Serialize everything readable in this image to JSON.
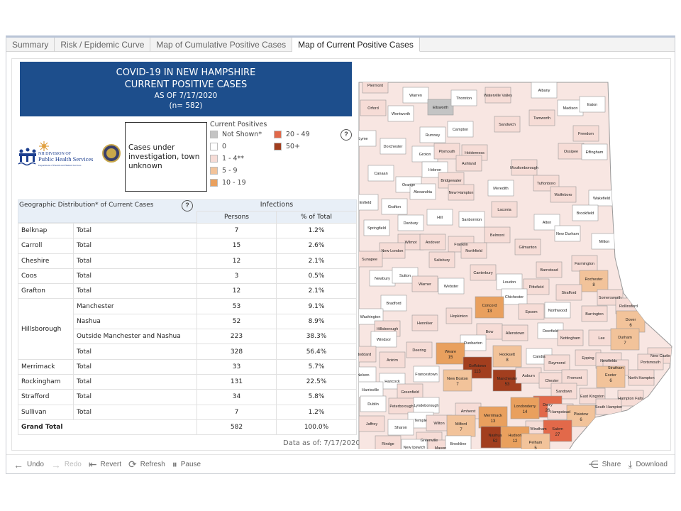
{
  "tabs": [
    {
      "label": "Summary"
    },
    {
      "label": "Risk / Epidemic Curve"
    },
    {
      "label": "Map of Cumulative Positive Cases"
    },
    {
      "label": "Map of Current Positive Cases",
      "active": true
    }
  ],
  "header": {
    "line1": "COVID-19 IN NEW HAMPSHIRE",
    "line2": "CURRENT POSITIVE CASES",
    "line3": "AS OF 7/17/2020",
    "line4": "(n= 582)"
  },
  "logo": {
    "text1": "NH DIVISION OF",
    "text2": "Public Health Services",
    "text3": "Department of Health and Human Services"
  },
  "unknown_box": "Cases under investigation, town unknown",
  "legend": {
    "title": "Current Positives",
    "items": [
      {
        "label": "Not Shown*",
        "color": "#c4c4c4"
      },
      {
        "label": "0",
        "color": "#ffffff"
      },
      {
        "label": "1 - 4**",
        "color": "#f6dcd6"
      },
      {
        "label": "5 - 9",
        "color": "#f2c39a"
      },
      {
        "label": "10 - 19",
        "color": "#e9a05e"
      },
      {
        "label": "20 - 49",
        "color": "#e2694a"
      },
      {
        "label": "50+",
        "color": "#a23e1e"
      }
    ]
  },
  "help_icon": "question-icon",
  "table": {
    "title": "Geographic Distribution* of Current Cases",
    "group_header": "Infections",
    "col_persons": "Persons",
    "col_pct": "% of Total",
    "rows": [
      {
        "county": "Belknap",
        "sub": "Total",
        "persons": "7",
        "pct": "1.2%"
      },
      {
        "county": "Carroll",
        "sub": "Total",
        "persons": "15",
        "pct": "2.6%"
      },
      {
        "county": "Cheshire",
        "sub": "Total",
        "persons": "12",
        "pct": "2.1%"
      },
      {
        "county": "Coos",
        "sub": "Total",
        "persons": "3",
        "pct": "0.5%"
      },
      {
        "county": "Grafton",
        "sub": "Total",
        "persons": "12",
        "pct": "2.1%"
      },
      {
        "county": "Hillsborough",
        "sub": "Manchester",
        "persons": "53",
        "pct": "9.1%"
      },
      {
        "county": "Hillsborough",
        "sub": "Nashua",
        "persons": "52",
        "pct": "8.9%"
      },
      {
        "county": "Hillsborough",
        "sub": "Outside Manchester and Nashua",
        "persons": "223",
        "pct": "38.3%"
      },
      {
        "county": "Hillsborough",
        "sub": "Total",
        "persons": "328",
        "pct": "56.4%"
      },
      {
        "county": "Merrimack",
        "sub": "Total",
        "persons": "33",
        "pct": "5.7%"
      },
      {
        "county": "Rockingham",
        "sub": "Total",
        "persons": "131",
        "pct": "22.5%"
      },
      {
        "county": "Strafford",
        "sub": "Total",
        "persons": "34",
        "pct": "5.8%"
      },
      {
        "county": "Sullivan",
        "sub": "Total",
        "persons": "7",
        "pct": "1.2%"
      }
    ],
    "grand_total": {
      "label": "Grand Total",
      "persons": "582",
      "pct": "100.0%"
    }
  },
  "data_as_of": "Data as of:  7/17/2020",
  "toolbar": {
    "undo": "Undo",
    "redo": "Redo",
    "revert": "Revert",
    "refresh": "Refresh",
    "pause": "Pause",
    "share": "Share",
    "download": "Download"
  },
  "map": {
    "towns": [
      {
        "name": "Piermont",
        "bin": 2
      },
      {
        "name": "Warren",
        "bin": 1
      },
      {
        "name": "Ellsworth",
        "bin": 0
      },
      {
        "name": "Thornton",
        "bin": 1
      },
      {
        "name": "Waterville Valley",
        "bin": 2
      },
      {
        "name": "Albany",
        "bin": 1
      },
      {
        "name": "Madison",
        "bin": 1
      },
      {
        "name": "Eaton",
        "bin": 1
      },
      {
        "name": "Orford",
        "bin": 2
      },
      {
        "name": "Wentworth",
        "bin": 1
      },
      {
        "name": "Sandwich",
        "bin": 2
      },
      {
        "name": "Tamworth",
        "bin": 2
      },
      {
        "name": "Campton",
        "bin": 1
      },
      {
        "name": "Rumney",
        "bin": 1
      },
      {
        "name": "Freedom",
        "bin": 2
      },
      {
        "name": "Lyme",
        "bin": 1
      },
      {
        "name": "Dorchester",
        "bin": 1
      },
      {
        "name": "Groton",
        "bin": 1
      },
      {
        "name": "Plymouth",
        "bin": 2
      },
      {
        "name": "Holderness",
        "bin": 2
      },
      {
        "name": "Ossipee",
        "bin": 2
      },
      {
        "name": "Effingham",
        "bin": 1
      },
      {
        "name": "Ashland",
        "bin": 2
      },
      {
        "name": "Hebron",
        "bin": 1
      },
      {
        "name": "Moultonborough",
        "bin": 2
      },
      {
        "name": "Canaan",
        "bin": 1
      },
      {
        "name": "Bridgewater",
        "bin": 2
      },
      {
        "name": "Tuftonboro",
        "bin": 2
      },
      {
        "name": "Orange",
        "bin": 1
      },
      {
        "name": "Alexandria",
        "bin": 1
      },
      {
        "name": "New Hampton",
        "bin": 2
      },
      {
        "name": "Meredith",
        "bin": 1
      },
      {
        "name": "Wolfeboro",
        "bin": 2
      },
      {
        "name": "Wakefield",
        "bin": 1
      },
      {
        "name": "Enfield",
        "bin": 1
      },
      {
        "name": "Grafton",
        "bin": 1
      },
      {
        "name": "Laconia",
        "bin": 2
      },
      {
        "name": "Brookfield",
        "bin": 1
      },
      {
        "name": "Danbury",
        "bin": 1
      },
      {
        "name": "Hill",
        "bin": 1
      },
      {
        "name": "Sanbornton",
        "bin": 1
      },
      {
        "name": "Alton",
        "bin": 1
      },
      {
        "name": "Springfield",
        "bin": 1
      },
      {
        "name": "Belmont",
        "bin": 2
      },
      {
        "name": "New Durham",
        "bin": 1
      },
      {
        "name": "Wilmot",
        "bin": 2
      },
      {
        "name": "Andover",
        "bin": 2
      },
      {
        "name": "Franklin",
        "bin": 2
      },
      {
        "name": "Northfield",
        "bin": 2
      },
      {
        "name": "Gilmanton",
        "bin": 2
      },
      {
        "name": "Milton",
        "bin": 1
      },
      {
        "name": "New London",
        "bin": 2
      },
      {
        "name": "Salisbury",
        "bin": 2
      },
      {
        "name": "Farmington",
        "bin": 2
      },
      {
        "name": "Sunapee",
        "bin": 2
      },
      {
        "name": "Canterbury",
        "bin": 2
      },
      {
        "name": "Barnstead",
        "bin": 2
      },
      {
        "name": "Rochester",
        "value": "8",
        "bin": 3
      },
      {
        "name": "Newbury",
        "bin": 1
      },
      {
        "name": "Sutton",
        "bin": 1
      },
      {
        "name": "Loudon",
        "bin": 1
      },
      {
        "name": "Warner",
        "bin": 2
      },
      {
        "name": "Webster",
        "bin": 1
      },
      {
        "name": "Pittsfield",
        "bin": 2
      },
      {
        "name": "Strafford",
        "bin": 2
      },
      {
        "name": "Somersworth",
        "bin": 2
      },
      {
        "name": "Rollinsford",
        "bin": 2
      },
      {
        "name": "Bradford",
        "bin": 1
      },
      {
        "name": "Chichester",
        "bin": 1
      },
      {
        "name": "Concord",
        "value": "13",
        "bin": 4
      },
      {
        "name": "Epsom",
        "bin": 2
      },
      {
        "name": "Northwood",
        "bin": 1
      },
      {
        "name": "Barrington",
        "bin": 2
      },
      {
        "name": "Dover",
        "value": "6",
        "bin": 3
      },
      {
        "name": "Washington",
        "bin": 1
      },
      {
        "name": "Henniker",
        "bin": 2
      },
      {
        "name": "Hopkinton",
        "bin": 2
      },
      {
        "name": "Hillsborough",
        "bin": 2
      },
      {
        "name": "Bow",
        "bin": 2
      },
      {
        "name": "Allenstown",
        "bin": 2
      },
      {
        "name": "Deerfield",
        "bin": 1
      },
      {
        "name": "Nottingham",
        "bin": 2
      },
      {
        "name": "Lee",
        "bin": 2
      },
      {
        "name": "Durham",
        "value": "7",
        "bin": 3
      },
      {
        "name": "Windsor",
        "bin": 1
      },
      {
        "name": "Dunbarton",
        "bin": 1
      },
      {
        "name": "Weare",
        "value": "15",
        "bin": 4
      },
      {
        "name": "Deering",
        "bin": 2
      },
      {
        "name": "Stoddard",
        "bin": 2
      },
      {
        "name": "Antrim",
        "bin": 2
      },
      {
        "name": "Hooksett",
        "value": "8",
        "bin": 3
      },
      {
        "name": "Candia",
        "bin": 1
      },
      {
        "name": "Raymond",
        "bin": 2
      },
      {
        "name": "Epping",
        "bin": 2
      },
      {
        "name": "Newfields",
        "bin": 2
      },
      {
        "name": "Stratham",
        "bin": 2
      },
      {
        "name": "New Castle",
        "bin": 2
      },
      {
        "name": "Portsmouth",
        "bin": 2
      },
      {
        "name": "Goffstown",
        "value": "113",
        "bin": 6
      },
      {
        "name": "Manchester",
        "value": "53",
        "bin": 6
      },
      {
        "name": "Auburn",
        "bin": 2
      },
      {
        "name": "Exeter",
        "value": "6",
        "bin": 3
      },
      {
        "name": "North Hampton",
        "bin": 2
      },
      {
        "name": "Francestown",
        "bin": 1
      },
      {
        "name": "New Boston",
        "value": "7",
        "bin": 3
      },
      {
        "name": "Hancock",
        "bin": 1
      },
      {
        "name": "Nelson",
        "bin": 1
      },
      {
        "name": "Chester",
        "bin": 2
      },
      {
        "name": "Fremont",
        "bin": 2
      },
      {
        "name": "Harrisville",
        "bin": 1
      },
      {
        "name": "Greenfield",
        "bin": 2
      },
      {
        "name": "Sandown",
        "bin": 2
      },
      {
        "name": "East Kingston",
        "bin": 2
      },
      {
        "name": "Hampton Falls",
        "bin": 2
      },
      {
        "name": "Dublin",
        "bin": 1
      },
      {
        "name": "Peterborough",
        "bin": 2
      },
      {
        "name": "Lyndeborough",
        "bin": 1
      },
      {
        "name": "Amherst",
        "bin": 2
      },
      {
        "name": "Derry",
        "value": "26",
        "bin": 5
      },
      {
        "name": "Londonderry",
        "value": "14",
        "bin": 4
      },
      {
        "name": "Hampstead",
        "bin": 2
      },
      {
        "name": "Plaistow",
        "value": "6",
        "bin": 3
      },
      {
        "name": "South Hampton",
        "bin": 2
      },
      {
        "name": "Merrimack",
        "value": "13",
        "bin": 4
      },
      {
        "name": "Jaffrey",
        "bin": 2
      },
      {
        "name": "Temple",
        "bin": 1
      },
      {
        "name": "Sharon",
        "bin": 1
      },
      {
        "name": "Wilton",
        "bin": 2
      },
      {
        "name": "Milford",
        "value": "7",
        "bin": 3
      },
      {
        "name": "Windham",
        "bin": 2
      },
      {
        "name": "Salem",
        "value": "27",
        "bin": 5
      },
      {
        "name": "Nashua",
        "value": "52",
        "bin": 6
      },
      {
        "name": "Hudson",
        "value": "12",
        "bin": 4
      },
      {
        "name": "Rindge",
        "bin": 2
      },
      {
        "name": "Greenville",
        "bin": 2
      },
      {
        "name": "Mason",
        "bin": 2
      },
      {
        "name": "New Ipswich",
        "bin": 1
      },
      {
        "name": "Brookline",
        "bin": 1
      },
      {
        "name": "Pelham",
        "value": "5",
        "bin": 3
      }
    ]
  }
}
